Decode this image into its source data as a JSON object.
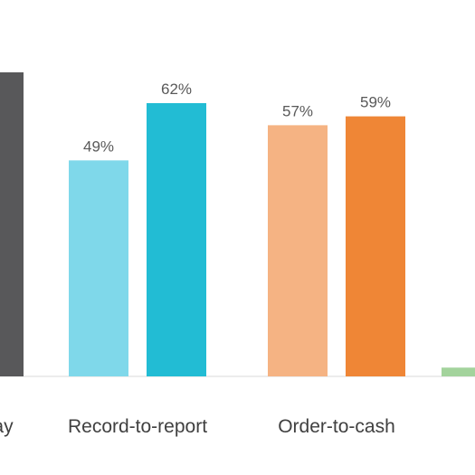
{
  "chart_data": {
    "type": "bar",
    "value_suffix": "%",
    "ylim": [
      0,
      100
    ],
    "grid": false,
    "groups": [
      {
        "category": "…ay",
        "bars": [
          {
            "value": 69,
            "color": "#58585a",
            "show_label": false
          }
        ]
      },
      {
        "category": "Record-to-report",
        "bars": [
          {
            "value": 49,
            "color": "#7fd8ea",
            "show_label": true
          },
          {
            "value": 62,
            "color": "#22bcd4",
            "show_label": true
          }
        ]
      },
      {
        "category": "Order-to-cash",
        "bars": [
          {
            "value": 57,
            "color": "#f5b383",
            "show_label": true
          },
          {
            "value": 59,
            "color": "#ef8636",
            "show_label": true
          }
        ]
      },
      {
        "category": "",
        "bars": [
          {
            "value": 2,
            "color": "#a3d39c",
            "show_label": false
          }
        ]
      }
    ]
  }
}
